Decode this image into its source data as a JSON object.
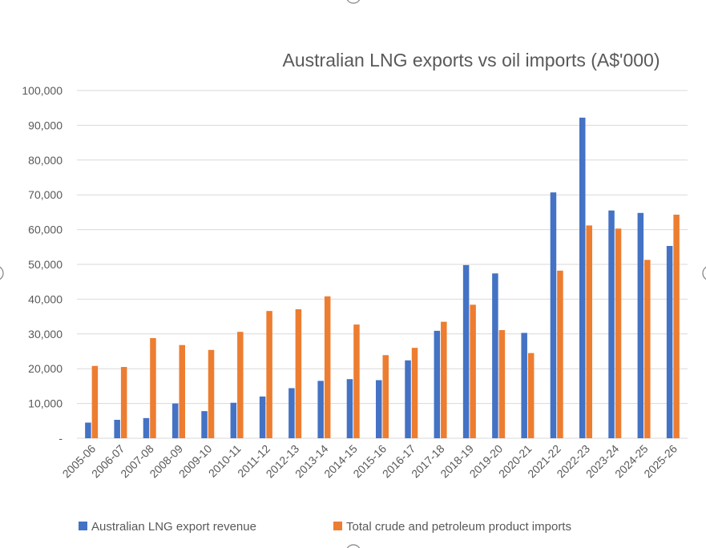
{
  "chart_data": {
    "type": "bar",
    "title": "Australian LNG exports vs oil imports (A$'000)",
    "xlabel": "",
    "ylabel": "",
    "ylim": [
      0,
      100000
    ],
    "yticks": [
      0,
      10000,
      20000,
      30000,
      40000,
      50000,
      60000,
      70000,
      80000,
      90000,
      100000
    ],
    "ytick_labels": [
      "-",
      "10,000",
      "20,000",
      "30,000",
      "40,000",
      "50,000",
      "60,000",
      "70,000",
      "80,000",
      "90,000",
      "100,000"
    ],
    "grid": true,
    "legend_position": "bottom",
    "categories": [
      "2005-06",
      "2006-07",
      "2007-08",
      "2008-09",
      "2009-10",
      "2010-11",
      "2011-12",
      "2012-13",
      "2013-14",
      "2014-15",
      "2015-16",
      "2016-17",
      "2017-18",
      "2018-19",
      "2019-20",
      "2020-21",
      "2021-22",
      "2022-23",
      "2023-24",
      "2024-25",
      "2025-26"
    ],
    "series": [
      {
        "name": "Australian LNG export revenue",
        "color": "#4472c4",
        "values": [
          4500,
          5300,
          5800,
          10000,
          7800,
          10200,
          12000,
          14400,
          16500,
          17000,
          16700,
          22400,
          30900,
          49800,
          47400,
          30300,
          70700,
          92200,
          65500,
          64800,
          55300
        ]
      },
      {
        "name": "Total crude and petroleum product imports",
        "color": "#ed7d31",
        "values": [
          20800,
          20500,
          28800,
          26800,
          25400,
          30600,
          36600,
          37100,
          40800,
          32700,
          23900,
          26000,
          33500,
          38400,
          31100,
          24500,
          48200,
          61200,
          60300,
          51300,
          64300
        ]
      }
    ]
  }
}
